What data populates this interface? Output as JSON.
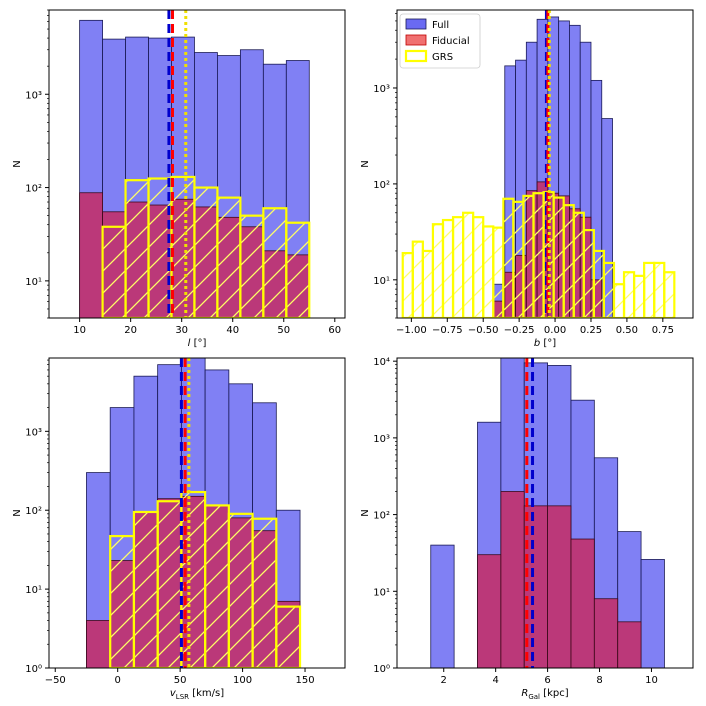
{
  "chart_data": [
    {
      "type": "histogram",
      "panel": "top-left",
      "xlabel": "l [°]",
      "xlabel_parts": [
        "l",
        " [°]"
      ],
      "ylabel": "N",
      "xlim": [
        4,
        62
      ],
      "ylog": [
        4,
        8000
      ],
      "xticks": [
        10,
        20,
        30,
        40,
        50,
        60
      ],
      "xtick_labels": [
        "10",
        "20",
        "30",
        "40",
        "50",
        "60"
      ],
      "yticks": [
        10,
        100,
        1000
      ],
      "ytick_labels": [
        "10¹",
        "10²",
        "10³"
      ],
      "series": [
        {
          "name": "Full",
          "edges": [
            10,
            14.5,
            19,
            23.5,
            28,
            32.5,
            37,
            41.5,
            46,
            50.5,
            55
          ],
          "values": [
            6200,
            3900,
            4100,
            4000,
            4100,
            2800,
            2600,
            3000,
            2100,
            2300
          ]
        },
        {
          "name": "Fiducial",
          "edges": [
            10,
            14.5,
            19,
            23.5,
            28,
            32.5,
            37,
            41.5,
            46,
            50.5,
            55
          ],
          "values": [
            88,
            55,
            70,
            65,
            75,
            62,
            48,
            38,
            21,
            19
          ]
        },
        {
          "name": "GRS",
          "edges": [
            14.5,
            19,
            23.5,
            28,
            32.5,
            37,
            41.5,
            46,
            50.5,
            55
          ],
          "values": [
            38,
            120,
            125,
            130,
            100,
            78,
            50,
            60,
            42
          ]
        }
      ],
      "vlines": [
        {
          "name": "Full",
          "x": 27.5
        },
        {
          "name": "Fiducial",
          "x": 28.2
        },
        {
          "name": "GRS",
          "x": 30.8
        }
      ]
    },
    {
      "type": "histogram",
      "panel": "top-right",
      "xlabel": "b [°]",
      "xlabel_parts": [
        "b",
        " [°]"
      ],
      "ylabel": "N",
      "xlim": [
        -1.1,
        0.96
      ],
      "ylog": [
        4,
        6500
      ],
      "xticks": [
        -1.0,
        -0.75,
        -0.5,
        -0.25,
        0.0,
        0.25,
        0.5,
        0.75
      ],
      "xtick_labels": [
        "−1.00",
        "−0.75",
        "−0.50",
        "−0.25",
        "0.00",
        "0.25",
        "0.50",
        "0.75"
      ],
      "yticks": [
        10,
        100,
        1000
      ],
      "ytick_labels": [
        "10¹",
        "10²",
        "10³"
      ],
      "series": [
        {
          "name": "Full",
          "edges": [
            -0.425,
            -0.35,
            -0.275,
            -0.2,
            -0.125,
            -0.05,
            0.025,
            0.1,
            0.175,
            0.25,
            0.325,
            0.4
          ],
          "values": [
            9,
            1700,
            1950,
            3000,
            5200,
            5500,
            5000,
            4500,
            3000,
            1200,
            480
          ]
        },
        {
          "name": "Fiducial",
          "edges": [
            -0.425,
            -0.35,
            -0.275,
            -0.2,
            -0.125,
            -0.05,
            0.025,
            0.1,
            0.175,
            0.25,
            0.325,
            0.4
          ],
          "values": [
            6,
            12,
            18,
            85,
            105,
            80,
            75,
            55,
            45,
            10,
            0
          ]
        },
        {
          "name": "GRS",
          "edges": [
            -1.06,
            -0.99,
            -0.92,
            -0.85,
            -0.78,
            -0.71,
            -0.64,
            -0.57,
            -0.5,
            -0.43,
            -0.36,
            -0.29,
            -0.22,
            -0.15,
            -0.08,
            -0.01,
            0.06,
            0.13,
            0.2,
            0.27,
            0.34,
            0.41,
            0.48,
            0.55,
            0.62,
            0.69,
            0.76,
            0.83,
            0.9
          ],
          "values": [
            19,
            25,
            20,
            38,
            42,
            45,
            50,
            45,
            36,
            35,
            70,
            65,
            75,
            80,
            82,
            72,
            60,
            50,
            33,
            20,
            15,
            9,
            12,
            11,
            15,
            15,
            12,
            0
          ]
        }
      ],
      "vlines": [
        {
          "name": "Full",
          "x": -0.06
        },
        {
          "name": "Fiducial",
          "x": -0.05
        },
        {
          "name": "GRS",
          "x": -0.04
        }
      ],
      "legend": {
        "position": "top-left",
        "entries": [
          "Full",
          "Fiducial",
          "GRS"
        ]
      }
    },
    {
      "type": "histogram",
      "panel": "bottom-left",
      "xlabel": "vLSR [km/s]",
      "xlabel_parts": [
        "v",
        "LSR",
        " [km/s]"
      ],
      "ylabel": "N",
      "xlim": [
        -55,
        182
      ],
      "ylog": [
        1,
        8500
      ],
      "xticks": [
        -50,
        0,
        50,
        100,
        150
      ],
      "xtick_labels": [
        "−50",
        "0",
        "50",
        "100",
        "150"
      ],
      "yticks": [
        1,
        10,
        100,
        1000
      ],
      "ytick_labels": [
        "10⁰",
        "10¹",
        "10²",
        "10³"
      ],
      "series": [
        {
          "name": "Full",
          "edges": [
            -25,
            -6,
            13,
            32,
            51,
            70,
            89,
            108,
            127,
            146
          ],
          "values": [
            300,
            2000,
            5000,
            7000,
            9000,
            6000,
            4000,
            2300,
            100
          ]
        },
        {
          "name": "Fiducial",
          "edges": [
            -25,
            -6,
            13,
            32,
            51,
            70,
            89,
            108,
            127,
            146
          ],
          "values": [
            4,
            23,
            95,
            140,
            150,
            115,
            80,
            55,
            7,
            0
          ]
        },
        {
          "name": "GRS",
          "edges": [
            -6,
            13,
            32,
            51,
            70,
            89,
            108,
            127,
            146
          ],
          "values": [
            47,
            95,
            130,
            170,
            115,
            90,
            78,
            6
          ]
        }
      ],
      "vlines": [
        {
          "name": "Full",
          "x": 51
        },
        {
          "name": "Fiducial",
          "x": 54
        },
        {
          "name": "GRS",
          "x": 57
        }
      ]
    },
    {
      "type": "histogram",
      "panel": "bottom-right",
      "xlabel": "RGal [kpc]",
      "xlabel_parts": [
        "R",
        "Gal",
        " [kpc]"
      ],
      "ylabel": "N",
      "xlim": [
        0.2,
        11.6
      ],
      "ylog": [
        1,
        11000
      ],
      "xticks": [
        2,
        4,
        6,
        8,
        10
      ],
      "xtick_labels": [
        "2",
        "4",
        "6",
        "8",
        "10"
      ],
      "yticks": [
        1,
        10,
        100,
        1000,
        10000
      ],
      "ytick_labels": [
        "10⁰",
        "10¹",
        "10²",
        "10³",
        "10⁴"
      ],
      "series": [
        {
          "name": "Full",
          "edges": [
            1.5,
            2.4,
            3.3,
            4.2,
            5.1,
            6,
            6.9,
            7.8,
            8.7,
            9.6,
            10.5
          ],
          "values": [
            40,
            0,
            1600,
            11000,
            9500,
            8800,
            3100,
            550,
            60,
            26
          ]
        },
        {
          "name": "Fiducial",
          "edges": [
            1.5,
            2.4,
            3.3,
            4.2,
            5.1,
            6,
            6.9,
            7.8,
            8.7,
            9.6,
            10.5
          ],
          "values": [
            0,
            0,
            30,
            200,
            130,
            130,
            48,
            8,
            4,
            0
          ]
        }
      ],
      "vlines": [
        {
          "name": "Full",
          "x": 5.42
        },
        {
          "name": "Fiducial",
          "x": 5.2
        }
      ]
    }
  ],
  "styles": {
    "Full": {
      "fill": "#6a6af2",
      "edge": "#1a1a55",
      "line": "#0000cc"
    },
    "Fiducial": {
      "fill": "#c8285e",
      "edge": "#3c0a1c",
      "line": "#ff0000"
    },
    "GRS": {
      "edge": "#ffff00",
      "line": "#f0e000"
    }
  }
}
